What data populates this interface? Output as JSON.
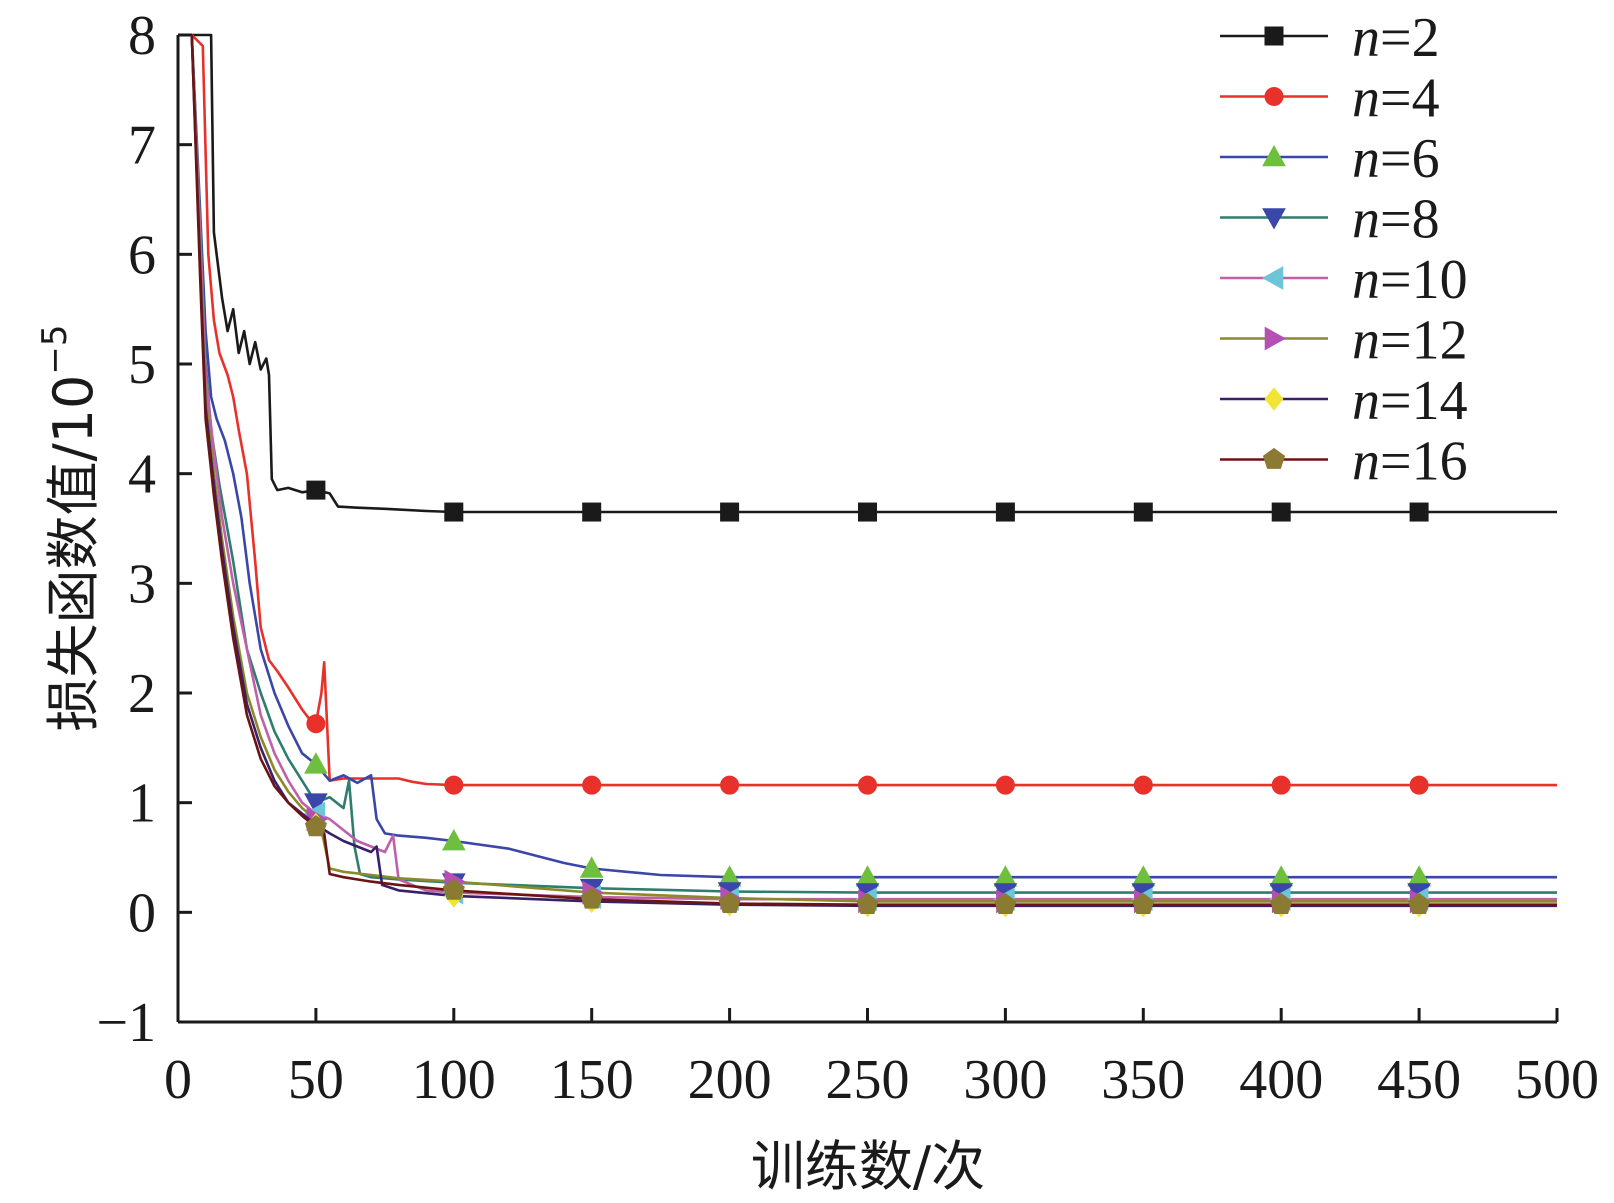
{
  "chart_data": {
    "type": "line",
    "xlabel": "训练数/次",
    "ylabel": "损失函数值/10",
    "ylabel_exponent": "−5",
    "xlim": [
      0,
      500
    ],
    "ylim": [
      -1,
      8
    ],
    "x_ticks": [
      "0",
      "50",
      "100",
      "150",
      "200",
      "250",
      "300",
      "350",
      "400",
      "450",
      "500"
    ],
    "y_ticks": [
      "−1",
      "0",
      "1",
      "2",
      "3",
      "4",
      "5",
      "6",
      "7",
      "8"
    ],
    "legend_position": "top-right",
    "marker_x": [
      50,
      100,
      150,
      200,
      250,
      300,
      350,
      400,
      450
    ],
    "series": [
      {
        "name": "n=2",
        "n_prefix": "n",
        "n_value": "=2",
        "color": "#1a1a1a",
        "marker": "square",
        "marker_color": "#1a1a1a",
        "points": [
          [
            5,
            8.4
          ],
          [
            12,
            8.1
          ],
          [
            13,
            6.2
          ],
          [
            16,
            5.6
          ],
          [
            18,
            5.3
          ],
          [
            20,
            5.5
          ],
          [
            22,
            5.1
          ],
          [
            24,
            5.3
          ],
          [
            26,
            5.0
          ],
          [
            28,
            5.2
          ],
          [
            30,
            4.95
          ],
          [
            32,
            5.05
          ],
          [
            33,
            4.9
          ],
          [
            34,
            3.95
          ],
          [
            36,
            3.85
          ],
          [
            40,
            3.87
          ],
          [
            45,
            3.83
          ],
          [
            50,
            3.85
          ],
          [
            55,
            3.82
          ],
          [
            58,
            3.7
          ],
          [
            65,
            3.69
          ],
          [
            75,
            3.68
          ],
          [
            90,
            3.66
          ],
          [
            100,
            3.65
          ],
          [
            500,
            3.65
          ]
        ]
      },
      {
        "name": "n=4",
        "n_prefix": "n",
        "n_value": "=4",
        "color": "#e8312b",
        "marker": "circle",
        "marker_color": "#e8312b",
        "points": [
          [
            5,
            8.4
          ],
          [
            9,
            7.9
          ],
          [
            11,
            6.0
          ],
          [
            13,
            5.4
          ],
          [
            15,
            5.1
          ],
          [
            18,
            4.9
          ],
          [
            20,
            4.7
          ],
          [
            22,
            4.4
          ],
          [
            25,
            4.0
          ],
          [
            28,
            3.2
          ],
          [
            30,
            2.6
          ],
          [
            33,
            2.3
          ],
          [
            36,
            2.2
          ],
          [
            40,
            2.05
          ],
          [
            45,
            1.85
          ],
          [
            48,
            1.75
          ],
          [
            50,
            1.72
          ],
          [
            52,
            2.0
          ],
          [
            53,
            2.28
          ],
          [
            55,
            1.2
          ],
          [
            60,
            1.22
          ],
          [
            70,
            1.22
          ],
          [
            80,
            1.22
          ],
          [
            85,
            1.19
          ],
          [
            90,
            1.17
          ],
          [
            100,
            1.16
          ],
          [
            500,
            1.16
          ]
        ]
      },
      {
        "name": "n=6",
        "n_prefix": "n",
        "n_value": "=6",
        "color": "#3a46a8",
        "marker": "triangle-up",
        "marker_color": "#6fbf3e",
        "points": [
          [
            5,
            8.4
          ],
          [
            8,
            6.4
          ],
          [
            10,
            5.3
          ],
          [
            12,
            4.7
          ],
          [
            14,
            4.5
          ],
          [
            17,
            4.3
          ],
          [
            20,
            4.0
          ],
          [
            23,
            3.6
          ],
          [
            26,
            3.0
          ],
          [
            30,
            2.4
          ],
          [
            35,
            2.0
          ],
          [
            40,
            1.7
          ],
          [
            45,
            1.45
          ],
          [
            50,
            1.35
          ],
          [
            55,
            1.2
          ],
          [
            60,
            1.25
          ],
          [
            65,
            1.18
          ],
          [
            70,
            1.25
          ],
          [
            72,
            0.85
          ],
          [
            75,
            0.72
          ],
          [
            80,
            0.7
          ],
          [
            90,
            0.68
          ],
          [
            100,
            0.65
          ],
          [
            120,
            0.58
          ],
          [
            140,
            0.45
          ],
          [
            150,
            0.4
          ],
          [
            175,
            0.34
          ],
          [
            200,
            0.32
          ],
          [
            500,
            0.32
          ]
        ]
      },
      {
        "name": "n=8",
        "n_prefix": "n",
        "n_value": "=8",
        "color": "#2e7d6e",
        "marker": "triangle-down",
        "marker_color": "#3a46a8",
        "points": [
          [
            5,
            8.4
          ],
          [
            8,
            6.3
          ],
          [
            10,
            5.0
          ],
          [
            12,
            4.4
          ],
          [
            15,
            3.9
          ],
          [
            20,
            3.2
          ],
          [
            25,
            2.4
          ],
          [
            30,
            2.0
          ],
          [
            35,
            1.65
          ],
          [
            40,
            1.4
          ],
          [
            45,
            1.2
          ],
          [
            50,
            1.0
          ],
          [
            55,
            1.05
          ],
          [
            60,
            0.95
          ],
          [
            62,
            1.2
          ],
          [
            64,
            0.6
          ],
          [
            66,
            0.35
          ],
          [
            70,
            0.32
          ],
          [
            80,
            0.3
          ],
          [
            100,
            0.27
          ],
          [
            150,
            0.22
          ],
          [
            200,
            0.19
          ],
          [
            250,
            0.18
          ],
          [
            500,
            0.18
          ]
        ]
      },
      {
        "name": "n=10",
        "n_prefix": "n",
        "n_value": "=10",
        "color": "#c060a8",
        "marker": "triangle-left",
        "marker_color": "#6cc6d8",
        "points": [
          [
            5,
            8.4
          ],
          [
            8,
            6.2
          ],
          [
            10,
            4.9
          ],
          [
            13,
            4.2
          ],
          [
            16,
            3.6
          ],
          [
            20,
            3.0
          ],
          [
            25,
            2.4
          ],
          [
            30,
            1.8
          ],
          [
            35,
            1.45
          ],
          [
            40,
            1.2
          ],
          [
            45,
            1.0
          ],
          [
            50,
            0.9
          ],
          [
            55,
            0.85
          ],
          [
            60,
            0.75
          ],
          [
            65,
            0.65
          ],
          [
            70,
            0.6
          ],
          [
            75,
            0.55
          ],
          [
            78,
            0.7
          ],
          [
            80,
            0.3
          ],
          [
            90,
            0.2
          ],
          [
            100,
            0.18
          ],
          [
            150,
            0.14
          ],
          [
            200,
            0.12
          ],
          [
            250,
            0.12
          ],
          [
            500,
            0.12
          ]
        ]
      },
      {
        "name": "n=12",
        "n_prefix": "n",
        "n_value": "=12",
        "color": "#8a8a2a",
        "marker": "triangle-right",
        "marker_color": "#b64fb4",
        "points": [
          [
            5,
            8.4
          ],
          [
            8,
            6.0
          ],
          [
            10,
            4.7
          ],
          [
            13,
            4.0
          ],
          [
            16,
            3.4
          ],
          [
            20,
            2.7
          ],
          [
            25,
            2.0
          ],
          [
            30,
            1.6
          ],
          [
            35,
            1.3
          ],
          [
            40,
            1.1
          ],
          [
            45,
            0.95
          ],
          [
            50,
            0.85
          ],
          [
            52,
            0.75
          ],
          [
            55,
            0.4
          ],
          [
            60,
            0.37
          ],
          [
            70,
            0.34
          ],
          [
            80,
            0.31
          ],
          [
            100,
            0.28
          ],
          [
            150,
            0.18
          ],
          [
            200,
            0.13
          ],
          [
            250,
            0.1
          ],
          [
            500,
            0.1
          ]
        ]
      },
      {
        "name": "n=14",
        "n_prefix": "n",
        "n_value": "=14",
        "color": "#3a1f6a",
        "marker": "diamond",
        "marker_color": "#f0e534",
        "points": [
          [
            5,
            8.4
          ],
          [
            8,
            5.9
          ],
          [
            10,
            4.6
          ],
          [
            13,
            3.9
          ],
          [
            16,
            3.3
          ],
          [
            20,
            2.6
          ],
          [
            25,
            1.9
          ],
          [
            30,
            1.5
          ],
          [
            35,
            1.2
          ],
          [
            40,
            1.0
          ],
          [
            45,
            0.9
          ],
          [
            50,
            0.8
          ],
          [
            55,
            0.72
          ],
          [
            60,
            0.65
          ],
          [
            65,
            0.6
          ],
          [
            70,
            0.55
          ],
          [
            72,
            0.6
          ],
          [
            74,
            0.25
          ],
          [
            80,
            0.2
          ],
          [
            100,
            0.15
          ],
          [
            150,
            0.1
          ],
          [
            200,
            0.07
          ],
          [
            250,
            0.06
          ],
          [
            500,
            0.06
          ]
        ]
      },
      {
        "name": "n=16",
        "n_prefix": "n",
        "n_value": "=16",
        "color": "#6b1414",
        "marker": "pentagon",
        "marker_color": "#8b7a32",
        "points": [
          [
            5,
            8.4
          ],
          [
            8,
            5.8
          ],
          [
            10,
            4.5
          ],
          [
            13,
            3.8
          ],
          [
            16,
            3.2
          ],
          [
            20,
            2.5
          ],
          [
            25,
            1.8
          ],
          [
            30,
            1.4
          ],
          [
            35,
            1.15
          ],
          [
            40,
            1.0
          ],
          [
            45,
            0.88
          ],
          [
            50,
            0.78
          ],
          [
            53,
            0.72
          ],
          [
            55,
            0.35
          ],
          [
            60,
            0.32
          ],
          [
            70,
            0.28
          ],
          [
            80,
            0.25
          ],
          [
            100,
            0.2
          ],
          [
            150,
            0.12
          ],
          [
            200,
            0.08
          ],
          [
            250,
            0.07
          ],
          [
            500,
            0.07
          ]
        ]
      }
    ]
  }
}
